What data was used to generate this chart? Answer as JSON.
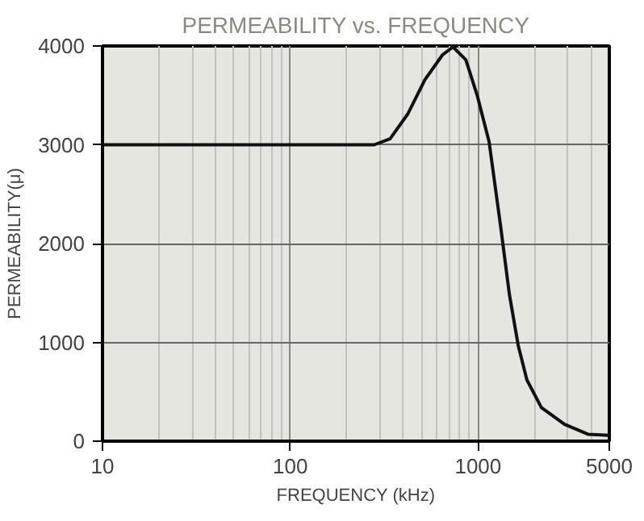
{
  "chart_data": {
    "type": "line",
    "title": "PERMEABILITY vs. FREQUENCY",
    "xlabel": "FREQUENCY (kHz)",
    "ylabel": "PERMEABILITY(μ)",
    "x": [
      10,
      280,
      340,
      422,
      522,
      647,
      736,
      861,
      993,
      1145,
      1320,
      1470,
      1636,
      1820,
      2175,
      2890,
      3850,
      5000
    ],
    "series": [
      {
        "color": "#111111",
        "values": [
          3000,
          3000,
          3060,
          3310,
          3660,
          3910,
          3990,
          3860,
          3490,
          3030,
          2170,
          1480,
          970,
          620,
          340,
          170,
          70,
          60
        ]
      }
    ],
    "log": "x",
    "xlim": [
      10,
      5000
    ],
    "xticks": [
      10,
      100,
      1000,
      5000
    ],
    "ylim": [
      0,
      4000
    ],
    "yticks": [
      0,
      1000,
      2000,
      3000,
      4000
    ],
    "grid": true,
    "line_style": "solid",
    "marker": "none"
  }
}
